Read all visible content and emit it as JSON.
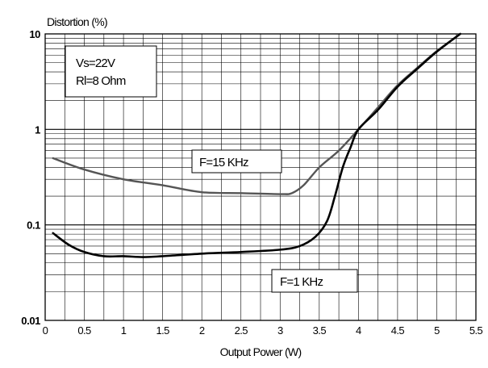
{
  "chart_data": {
    "type": "line",
    "ylabel": "Distortion (%)",
    "xlabel": "Output Power (W)",
    "xlim": [
      0,
      5.5
    ],
    "ylim": [
      0.01,
      10
    ],
    "yscale": "log",
    "grid": true,
    "x_ticks": [
      "0",
      "0.5",
      "1",
      "1.5",
      "2",
      "2.5",
      "3",
      "3.5",
      "4",
      "4.5",
      "5",
      "5.5"
    ],
    "y_ticks": [
      {
        "value": 0.01,
        "label": "0.01"
      },
      {
        "value": 0.1,
        "label": "0.1"
      },
      {
        "value": 1,
        "label": "1"
      },
      {
        "value": 10,
        "label": "10"
      }
    ],
    "conditions": [
      "Vs=22V",
      "Rl=8 Ohm"
    ],
    "series": [
      {
        "name": "F=15 KHz",
        "color": "#555555",
        "x": [
          0.1,
          0.5,
          1.0,
          1.5,
          2.0,
          2.5,
          3.0,
          3.15,
          3.3,
          3.5,
          3.75,
          4.0,
          4.25,
          4.5,
          4.75,
          5.0,
          5.3
        ],
        "y": [
          0.5,
          0.38,
          0.3,
          0.26,
          0.22,
          0.215,
          0.21,
          0.215,
          0.26,
          0.4,
          0.6,
          1.0,
          1.7,
          2.9,
          4.4,
          6.6,
          10.0
        ]
      },
      {
        "name": "F=1 KHz",
        "color": "#000000",
        "x": [
          0.1,
          0.3,
          0.5,
          0.75,
          1.0,
          1.25,
          1.5,
          2.0,
          2.5,
          3.0,
          3.25,
          3.45,
          3.6,
          3.7,
          3.8,
          3.9,
          4.0,
          4.25,
          4.5,
          4.75,
          5.0,
          5.3
        ],
        "y": [
          0.082,
          0.062,
          0.052,
          0.047,
          0.047,
          0.046,
          0.047,
          0.05,
          0.052,
          0.055,
          0.06,
          0.075,
          0.11,
          0.2,
          0.4,
          0.65,
          1.0,
          1.6,
          2.8,
          4.3,
          6.5,
          10.0
        ]
      }
    ],
    "annotations": [
      {
        "text": "F=15 KHz",
        "series": "F=15 KHz"
      },
      {
        "text": "F=1 KHz",
        "series": "F=1 KHz"
      }
    ]
  }
}
